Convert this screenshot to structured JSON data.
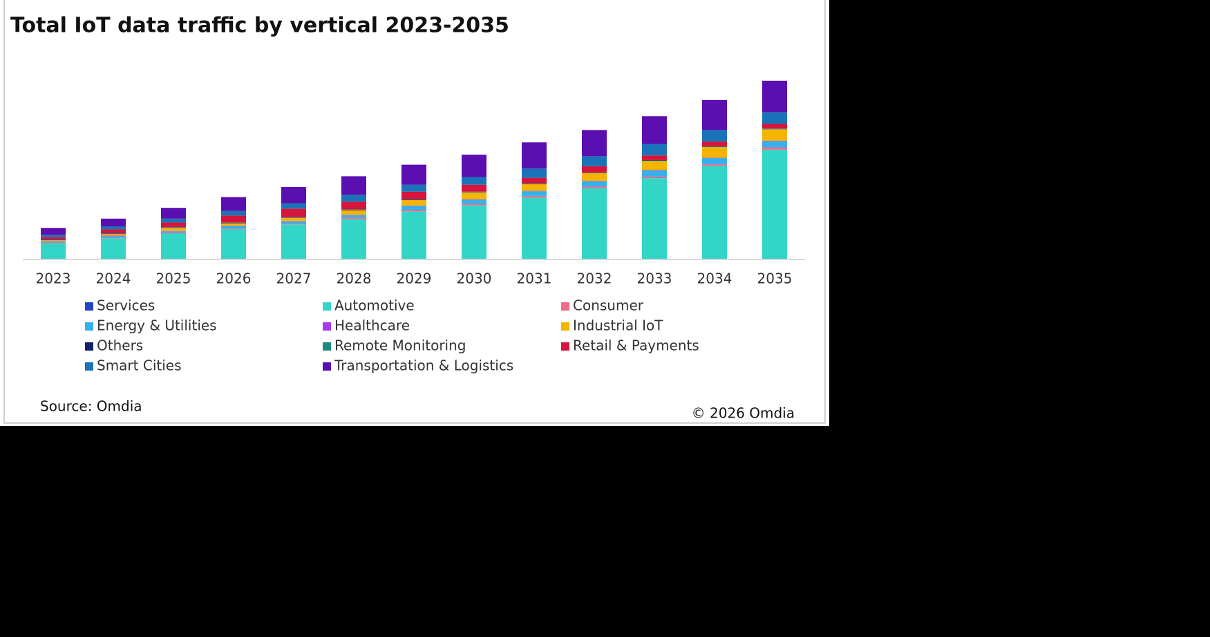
{
  "chart_data": {
    "type": "stacked-bar",
    "title": "Total IoT data traffic by vertical 2023-2035",
    "categories": [
      "2023",
      "2024",
      "2025",
      "2026",
      "2027",
      "2028",
      "2029",
      "2030",
      "2031",
      "2032",
      "2033",
      "2034",
      "2035"
    ],
    "ylim": [
      0,
      240
    ],
    "series": [
      {
        "name": "Services",
        "color": "#1f45c4",
        "values": [
          0.5,
          0.5,
          0.5,
          0.5,
          0.5,
          0.5,
          0.5,
          0.5,
          0.5,
          0.5,
          0.5,
          0.5,
          0.5
        ]
      },
      {
        "name": "Automotive",
        "color": "#33d6c6",
        "values": [
          21,
          27,
          33,
          39,
          45,
          52,
          62,
          70,
          80,
          92,
          105,
          121,
          142
        ]
      },
      {
        "name": "Consumer",
        "color": "#f06a8a",
        "values": [
          1,
          1,
          1,
          1,
          1,
          2,
          2,
          2,
          2,
          2,
          2,
          2,
          3
        ]
      },
      {
        "name": "Energy & Utilities",
        "color": "#35b1ef",
        "values": [
          1,
          2,
          2,
          3,
          3,
          3,
          5,
          5,
          6,
          7,
          8,
          8,
          8
        ]
      },
      {
        "name": "Healthcare",
        "color": "#a63cf0",
        "values": [
          0.5,
          0.5,
          0.5,
          0.5,
          0.5,
          0.5,
          0.5,
          0.5,
          0.5,
          0.5,
          0.5,
          0.5,
          0.5
        ]
      },
      {
        "name": "Industrial IoT",
        "color": "#f5b400",
        "values": [
          1,
          2,
          4,
          3,
          4,
          6,
          7,
          9,
          9,
          10,
          12,
          14,
          15
        ]
      },
      {
        "name": "Others",
        "color": "#0e1f6e",
        "values": [
          0.5,
          0.5,
          0.5,
          0.5,
          0.5,
          0.5,
          0.5,
          0.5,
          0.5,
          0.5,
          0.5,
          0.5,
          0.5
        ]
      },
      {
        "name": "Remote Monitoring",
        "color": "#1d8a80",
        "values": [
          0.5,
          0.5,
          0.5,
          0.5,
          0.5,
          0.5,
          0.5,
          0.5,
          0.5,
          0.5,
          0.5,
          0.5,
          0.5
        ]
      },
      {
        "name": "Retail & Payments",
        "color": "#d6143c",
        "values": [
          3,
          5,
          6,
          9,
          11,
          10,
          10,
          9,
          7,
          8,
          6,
          6,
          6
        ]
      },
      {
        "name": "Smart Cities",
        "color": "#1a73b8",
        "values": [
          3,
          4,
          5,
          6,
          7,
          9,
          9,
          10,
          12,
          13,
          15,
          15,
          15
        ]
      },
      {
        "name": "Transportation & Logistics",
        "color": "#5b0fb0",
        "values": [
          9,
          10,
          14,
          18,
          21,
          24,
          26,
          29,
          34,
          34,
          36,
          39,
          41
        ]
      }
    ],
    "source": "Source: Omdia",
    "copyright": "© 2026 Omdia"
  }
}
